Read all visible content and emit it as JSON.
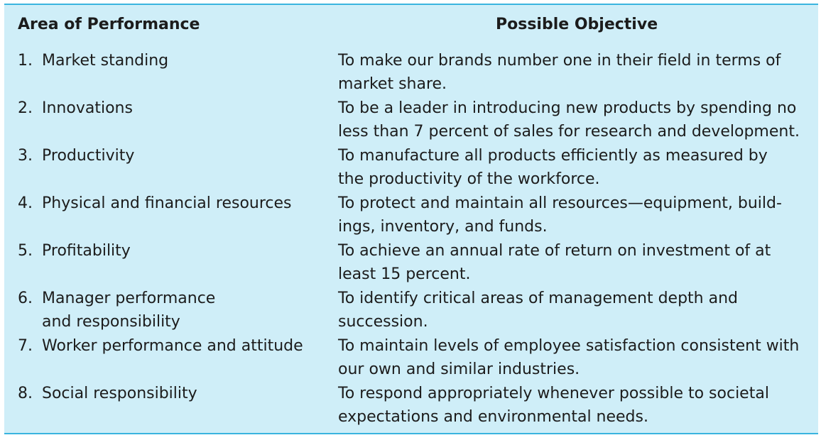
{
  "table": {
    "header": {
      "area": "Area of Performance",
      "objective": "Possible Objective"
    },
    "rows": [
      {
        "num": "1.",
        "area": "Market standing",
        "objective": "To make our brands number one in their field in terms of\nmarket share."
      },
      {
        "num": "2.",
        "area": "Innovations",
        "objective": "To be a leader in introducing new products by spending no\nless than 7 percent of sales for research and development."
      },
      {
        "num": "3.",
        "area": "Productivity",
        "objective": "To manufacture all products efficiently as measured by\nthe productivity of the workforce."
      },
      {
        "num": "4.",
        "area": "Physical and financial resources",
        "objective": "To protect and maintain all resources—equipment, build-\nings, inventory, and funds."
      },
      {
        "num": "5.",
        "area": "Profitability",
        "objective": "To achieve an annual rate of return on investment of at\nleast 15 percent."
      },
      {
        "num": "6.",
        "area": "Manager performance\nand responsibility",
        "objective": "To identify critical areas of management depth and\nsuccession."
      },
      {
        "num": "7.",
        "area": "Worker performance and attitude",
        "objective": "To maintain levels of employee satisfaction consistent with\nour own and similar industries."
      },
      {
        "num": "8.",
        "area": "Social responsibility",
        "objective": "To respond appropriately whenever possible to societal\nexpectations and environmental needs."
      }
    ]
  },
  "colors": {
    "background": "#cfeef8",
    "rule": "#3ab4df",
    "text": "#1c1c1c"
  }
}
